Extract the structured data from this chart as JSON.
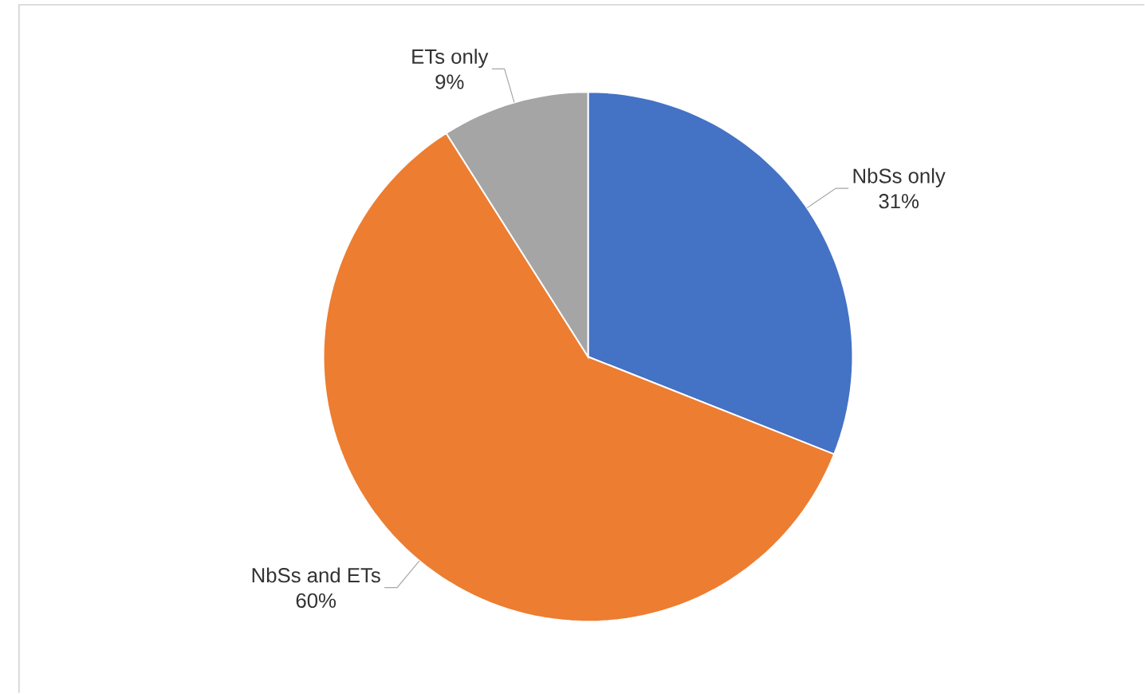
{
  "chart_data": {
    "type": "pie",
    "categories": [
      "NbSs only",
      "NbSs and ETs",
      "ETs only"
    ],
    "values": [
      31,
      60,
      9
    ],
    "value_labels": [
      "31%",
      "60%",
      "9%"
    ],
    "colors": [
      "#4472c4",
      "#ed7d31",
      "#a5a5a5"
    ]
  }
}
